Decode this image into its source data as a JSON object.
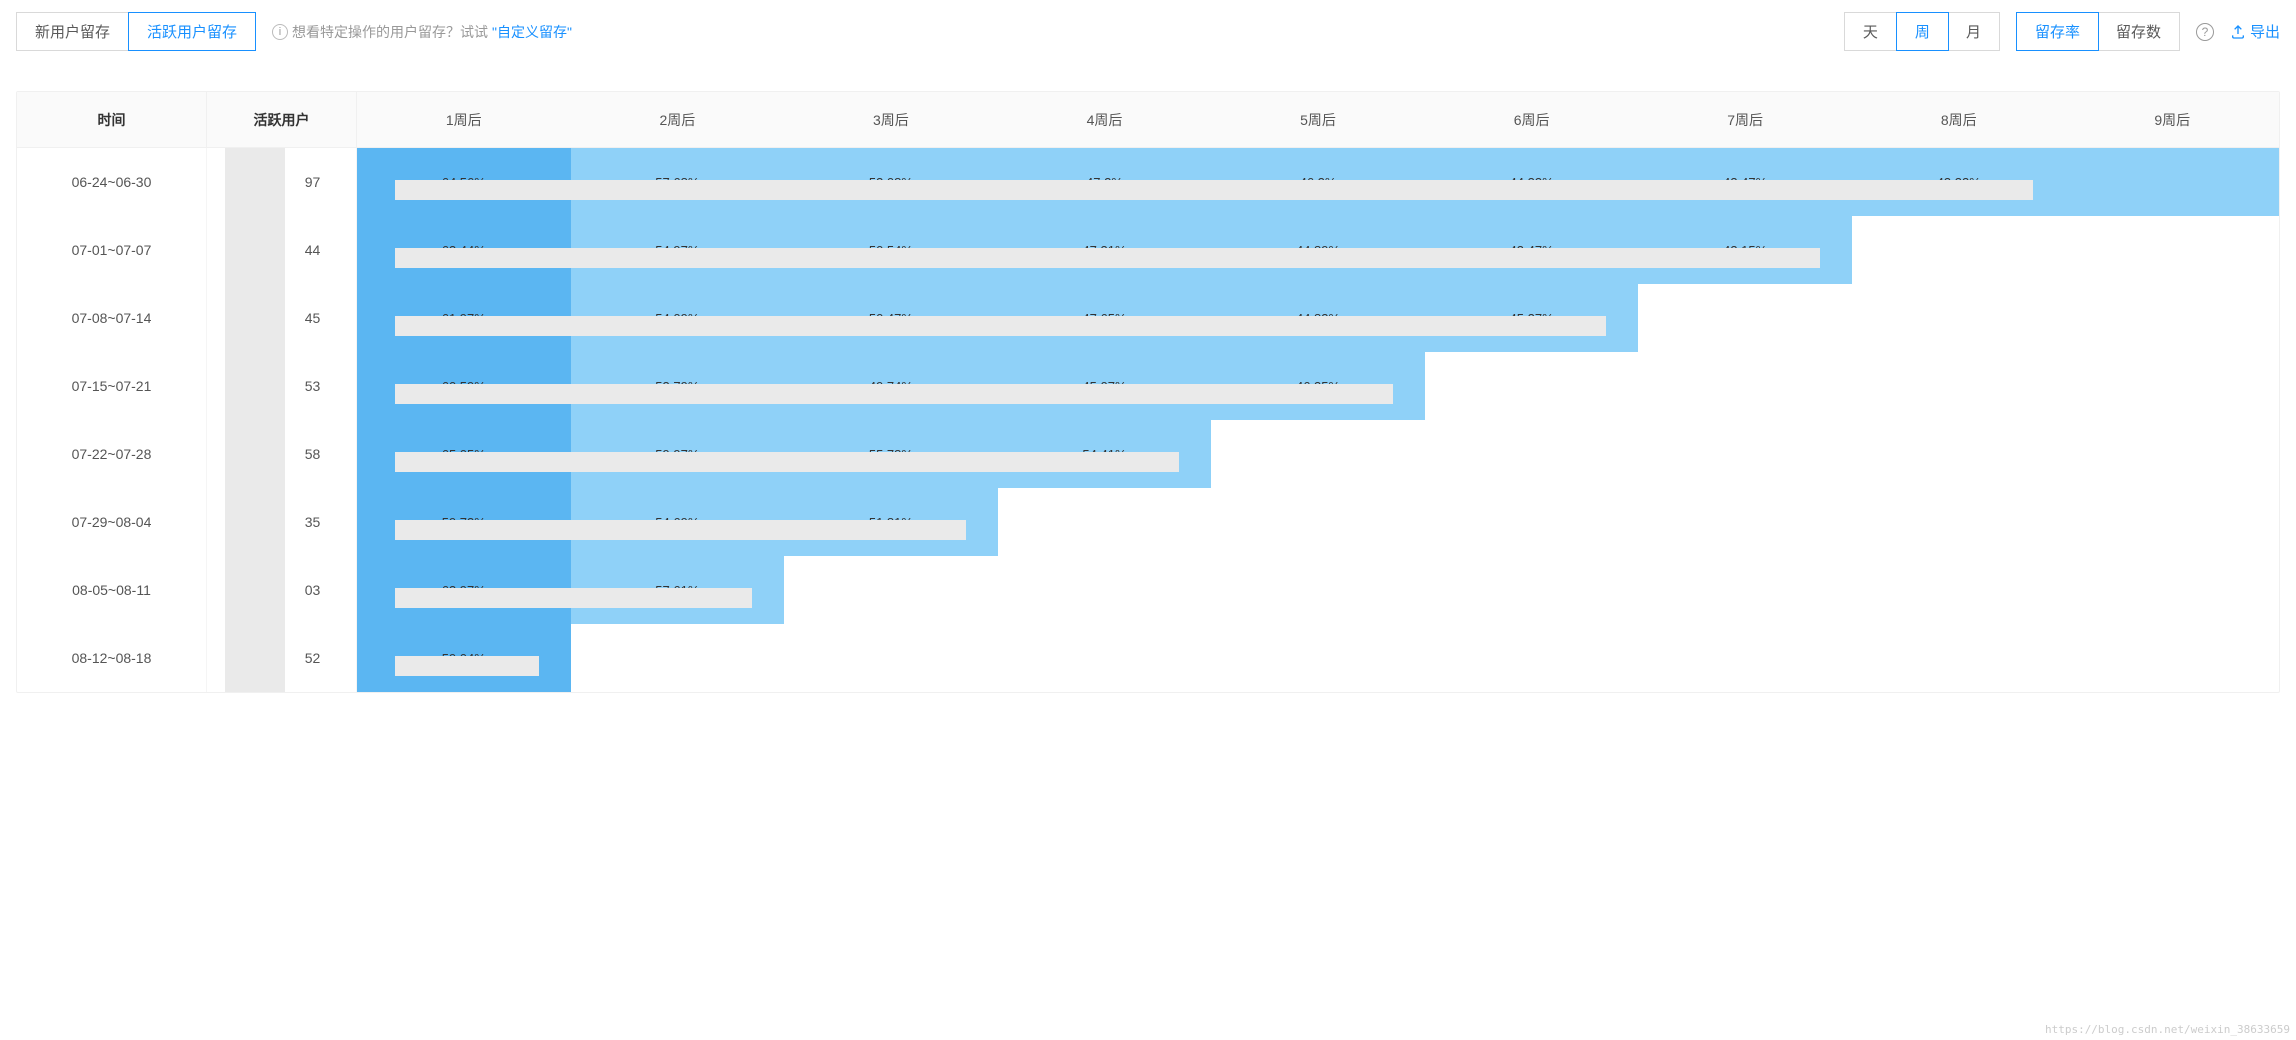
{
  "tabs": {
    "retention_type": [
      {
        "label": "新用户留存",
        "active": false
      },
      {
        "label": "活跃用户留存",
        "active": true
      }
    ],
    "hint_prefix": "想看特定操作的用户留存？试试",
    "hint_link": "\"自定义留存\"",
    "granularity": [
      {
        "label": "天",
        "active": false
      },
      {
        "label": "周",
        "active": true
      },
      {
        "label": "月",
        "active": false
      }
    ],
    "metric": [
      {
        "label": "留存率",
        "active": true
      },
      {
        "label": "留存数",
        "active": false
      }
    ],
    "export_label": "导出"
  },
  "table": {
    "col_time": "时间",
    "col_active": "活跃用户",
    "week_headers": [
      "1周后",
      "2周后",
      "3周后",
      "4周后",
      "5周后",
      "6周后",
      "7周后",
      "8周后",
      "9周后"
    ],
    "colors": {
      "dark": "#5bb6f2",
      "light": "#8fd1f8",
      "header_bg": "#fafafa",
      "mask": "#eaeaea"
    },
    "rows": [
      {
        "time": "06-24~06-30",
        "active_suffix": "97",
        "cells": [
          {
            "val": "64.56%",
            "shade": "dark"
          },
          {
            "val": "57.68%",
            "shade": "light"
          },
          {
            "val": "53.08%",
            "shade": "light"
          },
          {
            "val": "47.2%",
            "shade": "light"
          },
          {
            "val": "46.2%",
            "shade": "light"
          },
          {
            "val": "44.33%",
            "shade": "light"
          },
          {
            "val": "43.47%",
            "shade": "light"
          },
          {
            "val": "43.32%",
            "shade": "light"
          },
          {
            "val": "",
            "shade": "light"
          }
        ],
        "mask_span": 8
      },
      {
        "time": "07-01~07-07",
        "active_suffix": "44",
        "cells": [
          {
            "val": "63.44%",
            "shade": "dark"
          },
          {
            "val": "54.97%",
            "shade": "light"
          },
          {
            "val": "50.54%",
            "shade": "light"
          },
          {
            "val": "47.31%",
            "shade": "light"
          },
          {
            "val": "44.89%",
            "shade": "light"
          },
          {
            "val": "43.47%",
            "shade": "light"
          },
          {
            "val": "43.15%",
            "shade": "light"
          }
        ],
        "mask_span": 7
      },
      {
        "time": "07-08~07-14",
        "active_suffix": "45",
        "cells": [
          {
            "val": "61.97%",
            "shade": "dark"
          },
          {
            "val": "54.09%",
            "shade": "light"
          },
          {
            "val": "50.47%",
            "shade": "light"
          },
          {
            "val": "47.65%",
            "shade": "light"
          },
          {
            "val": "44.83%",
            "shade": "light"
          },
          {
            "val": "45.27%",
            "shade": "light"
          }
        ],
        "mask_span": 6
      },
      {
        "time": "07-15~07-21",
        "active_suffix": "53",
        "cells": [
          {
            "val": "60.59%",
            "shade": "dark"
          },
          {
            "val": "53.79%",
            "shade": "light"
          },
          {
            "val": "49.74%",
            "shade": "light"
          },
          {
            "val": "45.07%",
            "shade": "light"
          },
          {
            "val": "46.35%",
            "shade": "light"
          }
        ],
        "mask_span": 5
      },
      {
        "time": "07-22~07-28",
        "active_suffix": "58",
        "cells": [
          {
            "val": "65.05%",
            "shade": "dark"
          },
          {
            "val": "59.97%",
            "shade": "light"
          },
          {
            "val": "55.78%",
            "shade": "light"
          },
          {
            "val": "54.41%",
            "shade": "light"
          }
        ],
        "mask_span": 4
      },
      {
        "time": "07-29~08-04",
        "active_suffix": "35",
        "cells": [
          {
            "val": "59.73%",
            "shade": "dark"
          },
          {
            "val": "54.69%",
            "shade": "light"
          },
          {
            "val": "51.81%",
            "shade": "light"
          }
        ],
        "mask_span": 3
      },
      {
        "time": "08-05~08-11",
        "active_suffix": "03",
        "cells": [
          {
            "val": "63.97%",
            "shade": "dark"
          },
          {
            "val": "57.61%",
            "shade": "light"
          }
        ],
        "mask_span": 2
      },
      {
        "time": "08-12~08-18",
        "active_suffix": "52",
        "cells": [
          {
            "val": "59.04%",
            "shade": "dark"
          }
        ],
        "mask_span": 1
      }
    ]
  },
  "watermark": "https://blog.csdn.net/weixin_38633659"
}
